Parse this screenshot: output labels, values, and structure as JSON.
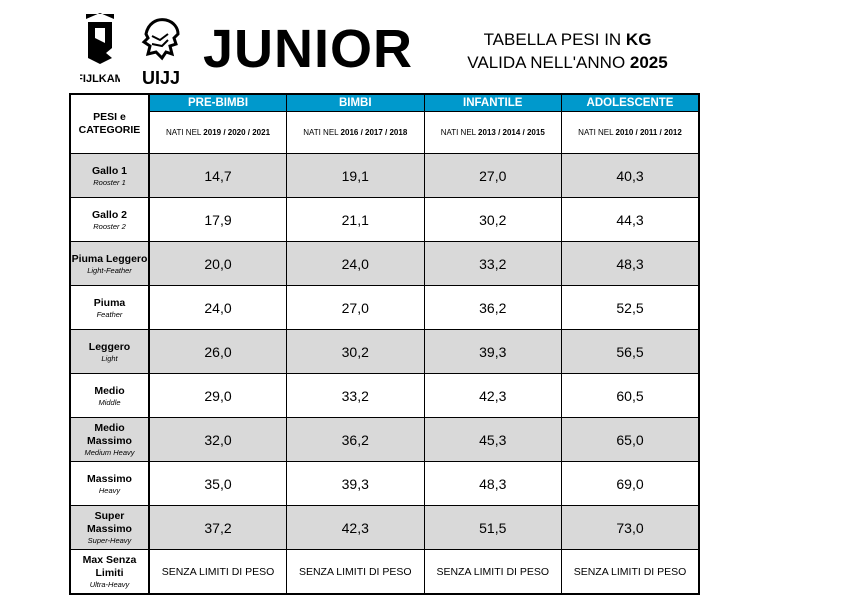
{
  "header": {
    "title": "JUNIOR",
    "subtitle_line1_prefix": "TABELLA PESI IN ",
    "subtitle_line1_bold": "KG",
    "subtitle_line2_prefix": "VALIDA NELL'ANNO ",
    "subtitle_line2_bold": "2025",
    "logo_left_text": "FIJLKAM",
    "logo_right_text": "UIJJ"
  },
  "table": {
    "corner_label": "PESI e CATEGORIE",
    "born_prefix": "NATI NEL ",
    "columns": [
      {
        "name": "PRE-BIMBI",
        "years": "2019 / 2020 / 2021"
      },
      {
        "name": "BIMBI",
        "years": "2016 / 2017 / 2018"
      },
      {
        "name": "INFANTILE",
        "years": "2013 / 2014 / 2015"
      },
      {
        "name": "ADOLESCENTE",
        "years": "2010 / 2011 / 2012"
      }
    ],
    "header_color": "#0099cc",
    "rows": [
      {
        "name": "Gallo 1",
        "en": "Rooster 1",
        "values": [
          "14,7",
          "19,1",
          "27,0",
          "40,3"
        ]
      },
      {
        "name": "Gallo 2",
        "en": "Rooster 2",
        "values": [
          "17,9",
          "21,1",
          "30,2",
          "44,3"
        ]
      },
      {
        "name": "Piuma Leggero",
        "en": "Light-Feather",
        "values": [
          "20,0",
          "24,0",
          "33,2",
          "48,3"
        ]
      },
      {
        "name": "Piuma",
        "en": "Feather",
        "values": [
          "24,0",
          "27,0",
          "36,2",
          "52,5"
        ]
      },
      {
        "name": "Leggero",
        "en": "Light",
        "values": [
          "26,0",
          "30,2",
          "39,3",
          "56,5"
        ]
      },
      {
        "name": "Medio",
        "en": "Middle",
        "values": [
          "29,0",
          "33,2",
          "42,3",
          "60,5"
        ]
      },
      {
        "name": "Medio Massimo",
        "en": "Medium Heavy",
        "values": [
          "32,0",
          "36,2",
          "45,3",
          "65,0"
        ]
      },
      {
        "name": "Massimo",
        "en": "Heavy",
        "values": [
          "35,0",
          "39,3",
          "48,3",
          "69,0"
        ]
      },
      {
        "name": "Super Massimo",
        "en": "Super-Heavy",
        "values": [
          "37,2",
          "42,3",
          "51,5",
          "73,0"
        ]
      },
      {
        "name": "Max Senza Limiti",
        "en": "Ultra-Heavy",
        "values": [
          "SENZA LIMITI DI PESO",
          "SENZA LIMITI DI PESO",
          "SENZA LIMITI DI PESO",
          "SENZA LIMITI DI PESO"
        ]
      }
    ]
  }
}
